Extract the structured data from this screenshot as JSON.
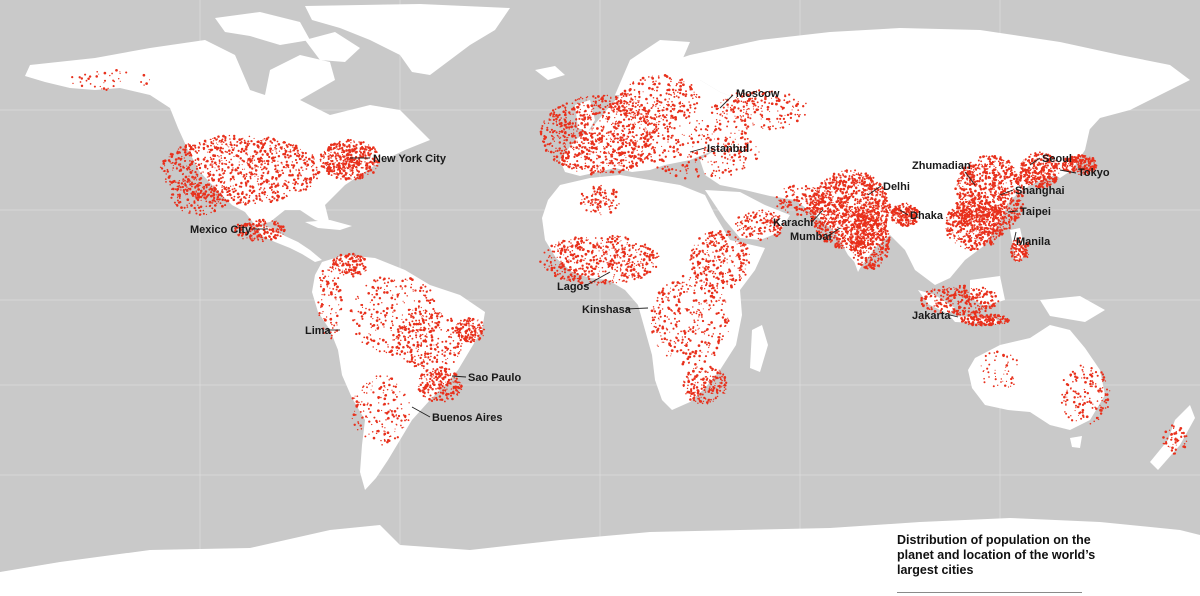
{
  "map": {
    "ocean_color": "#c9c9c9",
    "land_color": "#ffffff",
    "population_color": "#e8301c",
    "gridline_color": "#dcdcdc"
  },
  "caption": "Distribution of population on the planet and location of the world’s largest cities",
  "cities": [
    {
      "id": "moscow",
      "name": "Moscow"
    },
    {
      "id": "new-york-city",
      "name": "New York City"
    },
    {
      "id": "istanbul",
      "name": "Istanbul"
    },
    {
      "id": "seoul",
      "name": "Seoul"
    },
    {
      "id": "zhumadian",
      "name": "Zhumadian"
    },
    {
      "id": "tokyo",
      "name": "Tokyo"
    },
    {
      "id": "delhi",
      "name": "Delhi"
    },
    {
      "id": "shanghai",
      "name": "Shanghai"
    },
    {
      "id": "karachi",
      "name": "Karachi"
    },
    {
      "id": "dhaka",
      "name": "Dhaka"
    },
    {
      "id": "taipei",
      "name": "Taipei"
    },
    {
      "id": "mexico-city",
      "name": "Mexico City"
    },
    {
      "id": "mumbai",
      "name": "Mumbai"
    },
    {
      "id": "manila",
      "name": "Manila"
    },
    {
      "id": "lagos",
      "name": "Lagos"
    },
    {
      "id": "kinshasa",
      "name": "Kinshasa"
    },
    {
      "id": "jakarta",
      "name": "Jakarta"
    },
    {
      "id": "lima",
      "name": "Lima"
    },
    {
      "id": "sao-paulo",
      "name": "Sao Paulo"
    },
    {
      "id": "buenos-aires",
      "name": "Buenos Aires"
    }
  ]
}
